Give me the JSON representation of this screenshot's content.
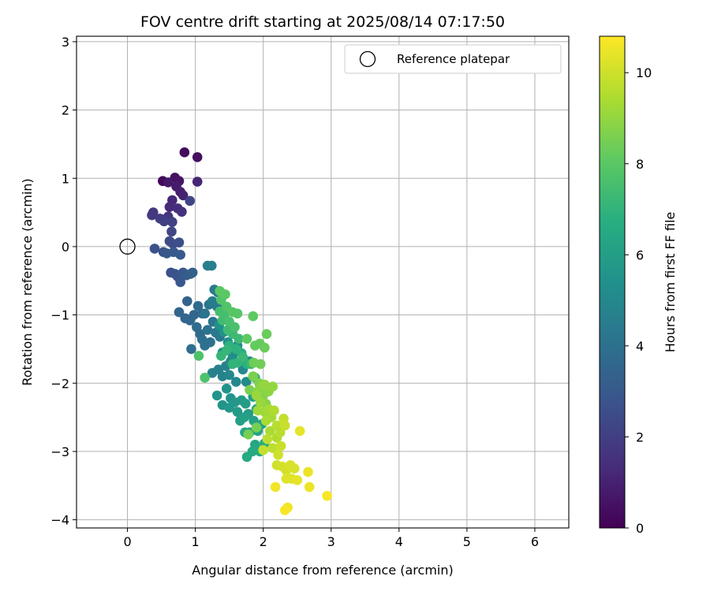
{
  "chart_data": {
    "type": "scatter",
    "title": "FOV centre drift starting at 2025/08/14 07:17:50",
    "xlabel": "Angular distance from reference (arcmin)",
    "ylabel": "Rotation from reference (arcmin)",
    "xlim": [
      -0.75,
      6.5
    ],
    "ylim": [
      -4.12,
      3.08
    ],
    "xticks": [
      "0",
      "1",
      "2",
      "3",
      "4",
      "5",
      "6"
    ],
    "yticks": [
      "3",
      "2",
      "1",
      "0",
      "−1",
      "−2",
      "−3",
      "−4"
    ],
    "grid": true,
    "legend": {
      "placement": "top-right",
      "entries": [
        "Reference platepar"
      ]
    },
    "reference": {
      "x": 0,
      "y": 0
    },
    "colorbar": {
      "label": "Hours from first FF file",
      "colormap": "viridis",
      "range": [
        0,
        10.8
      ],
      "ticks": [
        "0",
        "2",
        "4",
        "6",
        "8",
        "10"
      ]
    },
    "points": [
      [
        0.52,
        0.96,
        0.2
      ],
      [
        0.84,
        1.38,
        0.3
      ],
      [
        1.03,
        1.31,
        0.4
      ],
      [
        0.7,
        1.01,
        0.5
      ],
      [
        0.76,
        0.96,
        0.6
      ],
      [
        0.6,
        0.94,
        0.7
      ],
      [
        0.72,
        0.88,
        0.8
      ],
      [
        0.78,
        0.8,
        0.9
      ],
      [
        0.82,
        0.75,
        1.0
      ],
      [
        1.03,
        0.95,
        1.1
      ],
      [
        0.66,
        0.68,
        1.2
      ],
      [
        0.62,
        0.58,
        1.3
      ],
      [
        0.74,
        0.56,
        1.4
      ],
      [
        0.8,
        0.51,
        1.5
      ],
      [
        0.6,
        0.44,
        1.6
      ],
      [
        0.38,
        0.5,
        1.7
      ],
      [
        0.36,
        0.46,
        1.8
      ],
      [
        0.48,
        0.41,
        1.9
      ],
      [
        0.54,
        0.37,
        2.0
      ],
      [
        0.66,
        0.36,
        2.1
      ],
      [
        0.92,
        0.67,
        2.2
      ],
      [
        0.65,
        0.22,
        2.3
      ],
      [
        0.62,
        0.08,
        2.4
      ],
      [
        0.67,
        0.04,
        2.5
      ],
      [
        0.76,
        0.06,
        2.6
      ],
      [
        0.4,
        -0.03,
        2.7
      ],
      [
        0.53,
        -0.08,
        2.8
      ],
      [
        0.58,
        -0.1,
        2.9
      ],
      [
        0.68,
        -0.08,
        3.0
      ],
      [
        0.78,
        -0.12,
        3.1
      ],
      [
        0.64,
        -0.38,
        2.6
      ],
      [
        0.7,
        -0.4,
        2.7
      ],
      [
        0.74,
        -0.44,
        2.8
      ],
      [
        0.78,
        -0.52,
        2.9
      ],
      [
        0.82,
        -0.38,
        3.0
      ],
      [
        0.87,
        -0.42,
        3.1
      ],
      [
        0.93,
        -0.4,
        3.2
      ],
      [
        0.96,
        -0.38,
        3.3
      ],
      [
        0.88,
        -0.8,
        3.4
      ],
      [
        0.76,
        -0.96,
        3.5
      ],
      [
        0.85,
        -1.05,
        3.5
      ],
      [
        0.92,
        -1.08,
        3.6
      ],
      [
        0.98,
        -1.0,
        3.6
      ],
      [
        1.04,
        -0.87,
        3.7
      ],
      [
        1.1,
        -0.98,
        3.7
      ],
      [
        1.02,
        -1.18,
        3.8
      ],
      [
        1.07,
        -1.28,
        3.8
      ],
      [
        1.1,
        -1.36,
        3.9
      ],
      [
        0.94,
        -1.5,
        3.9
      ],
      [
        1.14,
        -1.45,
        4.0
      ],
      [
        1.22,
        -1.4,
        4.0
      ],
      [
        1.18,
        -1.22,
        4.1
      ],
      [
        1.14,
        -0.98,
        4.1
      ],
      [
        1.26,
        -1.1,
        4.2
      ],
      [
        1.2,
        -0.85,
        4.2
      ],
      [
        1.3,
        -1.26,
        4.3
      ],
      [
        1.36,
        -1.32,
        4.3
      ],
      [
        1.28,
        -0.63,
        4.4
      ],
      [
        1.33,
        -0.67,
        4.4
      ],
      [
        1.25,
        -0.8,
        4.5
      ],
      [
        1.32,
        -0.88,
        4.5
      ],
      [
        1.18,
        -0.28,
        4.6
      ],
      [
        1.24,
        -0.28,
        4.6
      ],
      [
        1.25,
        -1.85,
        4.7
      ],
      [
        1.34,
        -1.8,
        4.7
      ],
      [
        1.4,
        -1.9,
        4.8
      ],
      [
        1.45,
        -1.75,
        4.8
      ],
      [
        1.52,
        -1.68,
        4.9
      ],
      [
        1.5,
        -1.88,
        4.9
      ],
      [
        1.6,
        -1.98,
        5.0
      ],
      [
        1.7,
        -1.8,
        5.0
      ],
      [
        1.75,
        -1.98,
        5.1
      ],
      [
        1.8,
        -1.68,
        5.1
      ],
      [
        1.62,
        -1.45,
        5.2
      ],
      [
        1.55,
        -1.6,
        5.2
      ],
      [
        1.48,
        -1.4,
        5.3
      ],
      [
        1.4,
        -1.55,
        5.3
      ],
      [
        1.35,
        -1.15,
        5.4
      ],
      [
        1.42,
        -1.25,
        5.4
      ],
      [
        1.46,
        -2.08,
        5.5
      ],
      [
        1.52,
        -2.22,
        5.5
      ],
      [
        1.4,
        -2.32,
        5.6
      ],
      [
        1.32,
        -2.18,
        5.6
      ],
      [
        1.5,
        -2.36,
        5.7
      ],
      [
        1.58,
        -2.28,
        5.7
      ],
      [
        1.62,
        -2.42,
        5.8
      ],
      [
        1.68,
        -2.25,
        5.8
      ],
      [
        1.74,
        -2.3,
        5.9
      ],
      [
        1.78,
        -2.45,
        5.9
      ],
      [
        1.66,
        -2.55,
        6.0
      ],
      [
        1.85,
        -2.2,
        6.0
      ],
      [
        1.72,
        -2.5,
        6.1
      ],
      [
        1.86,
        -2.55,
        6.1
      ],
      [
        1.9,
        -2.38,
        6.2
      ],
      [
        1.8,
        -2.72,
        6.2
      ],
      [
        1.92,
        -2.7,
        6.3
      ],
      [
        1.98,
        -2.6,
        6.3
      ],
      [
        1.73,
        -2.72,
        6.4
      ],
      [
        1.88,
        -2.9,
        6.4
      ],
      [
        1.84,
        -3.0,
        6.5
      ],
      [
        1.76,
        -3.08,
        6.5
      ],
      [
        1.95,
        -3.0,
        6.6
      ],
      [
        2.02,
        -2.88,
        6.6
      ],
      [
        1.95,
        -2.02,
        6.7
      ],
      [
        1.88,
        -1.92,
        6.7
      ],
      [
        1.76,
        -1.72,
        6.8
      ],
      [
        1.68,
        -1.56,
        6.8
      ],
      [
        1.6,
        -1.5,
        6.9
      ],
      [
        1.5,
        -1.45,
        6.9
      ],
      [
        1.62,
        -1.7,
        7.0
      ],
      [
        1.55,
        -1.72,
        7.0
      ],
      [
        1.46,
        -1.52,
        7.1
      ],
      [
        1.38,
        -1.6,
        7.1
      ],
      [
        1.82,
        -1.72,
        7.2
      ],
      [
        1.7,
        -1.62,
        7.2
      ],
      [
        1.64,
        -1.35,
        7.3
      ],
      [
        1.55,
        -1.28,
        7.3
      ],
      [
        1.48,
        -1.22,
        7.4
      ],
      [
        1.4,
        -1.08,
        7.4
      ],
      [
        1.36,
        -0.95,
        7.5
      ],
      [
        1.43,
        -1.0,
        7.5
      ],
      [
        1.5,
        -1.1,
        7.6
      ],
      [
        1.58,
        -1.18,
        7.6
      ],
      [
        1.05,
        -1.6,
        7.7
      ],
      [
        1.14,
        -1.92,
        7.7
      ],
      [
        1.38,
        -0.78,
        7.8
      ],
      [
        1.46,
        -0.88,
        7.8
      ],
      [
        1.55,
        -0.96,
        7.9
      ],
      [
        1.62,
        -0.98,
        7.9
      ],
      [
        1.36,
        -0.65,
        8.0
      ],
      [
        1.44,
        -0.7,
        8.0
      ],
      [
        1.85,
        -1.02,
        8.1
      ],
      [
        1.76,
        -1.35,
        8.1
      ],
      [
        1.88,
        -1.45,
        8.2
      ],
      [
        1.95,
        -1.42,
        8.2
      ],
      [
        2.02,
        -1.48,
        8.3
      ],
      [
        2.05,
        -1.28,
        8.3
      ],
      [
        1.86,
        -1.7,
        8.4
      ],
      [
        1.96,
        -1.72,
        8.4
      ],
      [
        1.78,
        -2.75,
        8.5
      ],
      [
        1.9,
        -2.65,
        8.5
      ],
      [
        1.85,
        -1.9,
        8.6
      ],
      [
        1.8,
        -2.1,
        8.6
      ],
      [
        1.94,
        -2.0,
        8.7
      ],
      [
        2.0,
        -2.18,
        8.7
      ],
      [
        1.92,
        -2.12,
        8.8
      ],
      [
        2.04,
        -2.3,
        8.8
      ],
      [
        1.98,
        -2.05,
        8.9
      ],
      [
        2.08,
        -2.12,
        8.9
      ],
      [
        2.02,
        -2.02,
        9.0
      ],
      [
        2.14,
        -2.05,
        9.0
      ],
      [
        1.9,
        -2.18,
        9.1
      ],
      [
        1.96,
        -2.28,
        9.1
      ],
      [
        2.02,
        -2.42,
        9.2
      ],
      [
        1.92,
        -2.4,
        9.2
      ],
      [
        2.08,
        -2.38,
        9.3
      ],
      [
        2.12,
        -2.5,
        9.3
      ],
      [
        2.04,
        -2.55,
        9.4
      ],
      [
        2.1,
        -2.7,
        9.4
      ],
      [
        2.2,
        -2.8,
        9.5
      ],
      [
        2.16,
        -2.4,
        9.5
      ],
      [
        2.2,
        -2.62,
        9.6
      ],
      [
        2.25,
        -2.72,
        9.6
      ],
      [
        2.06,
        -2.82,
        9.7
      ],
      [
        2.14,
        -2.95,
        9.7
      ],
      [
        2.0,
        -2.98,
        9.8
      ],
      [
        2.3,
        -2.52,
        9.8
      ],
      [
        2.32,
        -2.62,
        9.9
      ],
      [
        2.26,
        -2.92,
        9.9
      ],
      [
        2.22,
        -3.05,
        10.0
      ],
      [
        2.2,
        -3.2,
        10.0
      ],
      [
        2.28,
        -3.22,
        10.1
      ],
      [
        2.34,
        -3.28,
        10.1
      ],
      [
        2.4,
        -3.2,
        10.2
      ],
      [
        2.46,
        -3.25,
        10.2
      ],
      [
        2.34,
        -3.4,
        10.3
      ],
      [
        2.42,
        -3.4,
        10.3
      ],
      [
        2.5,
        -3.42,
        10.4
      ],
      [
        2.54,
        -2.7,
        10.4
      ],
      [
        2.66,
        -3.3,
        10.5
      ],
      [
        2.68,
        -3.52,
        10.5
      ],
      [
        2.18,
        -3.52,
        10.6
      ],
      [
        2.36,
        -3.82,
        10.6
      ],
      [
        2.32,
        -3.86,
        10.7
      ],
      [
        2.94,
        -3.65,
        10.7
      ]
    ]
  }
}
